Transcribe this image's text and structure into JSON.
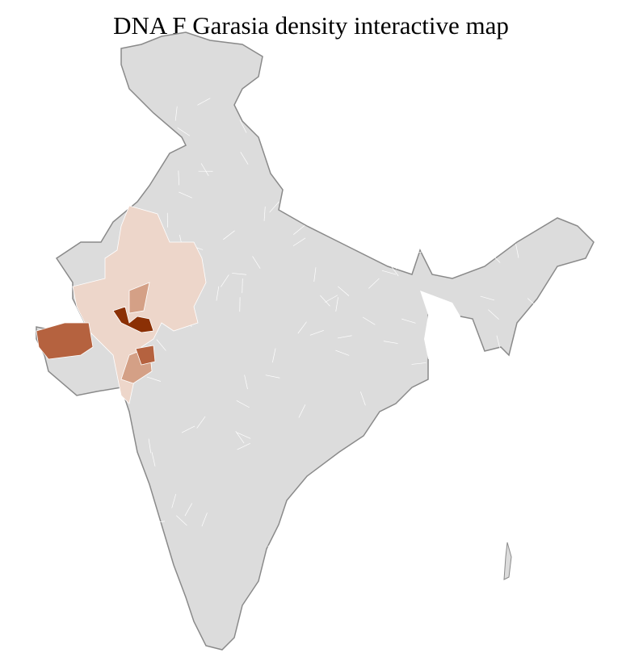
{
  "title": "DNA F Garasia density interactive map",
  "map": {
    "base_fill": "#dcdcdc",
    "border_color": "#8a8a8a",
    "district_line_color": "#ffffff",
    "density_colors": {
      "low": "#edd6ca",
      "medium": "#d4a086",
      "high": "#b5623f",
      "highest": "#8b3005"
    }
  }
}
